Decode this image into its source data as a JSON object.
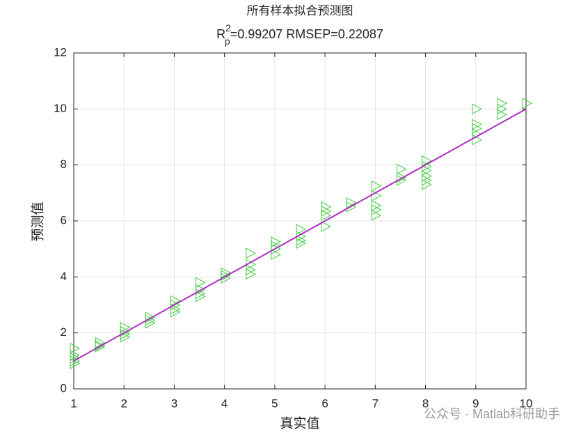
{
  "chart_data": {
    "type": "scatter",
    "title": "所有样本拟合预测图",
    "subtitle": {
      "base": "R",
      "sup": "2",
      "sub": "p",
      "rest": "=0.99207  RMSEP=0.22087"
    },
    "xlabel": "真实值",
    "ylabel": "预测值",
    "xlim": [
      1,
      10
    ],
    "xticks": [
      1,
      2,
      3,
      4,
      5,
      6,
      7,
      8,
      9,
      10
    ],
    "ylim": [
      0,
      12
    ],
    "yticks": [
      0,
      2,
      4,
      6,
      8,
      10,
      12
    ],
    "grid": true,
    "series": [
      {
        "type": "scatter",
        "marker": "triangle-right",
        "color": "#3ccc3c",
        "x": [
          1,
          1,
          1,
          1,
          1,
          1.5,
          1.5,
          1.5,
          2,
          2,
          2,
          2,
          2.5,
          2.5,
          2.5,
          3,
          3,
          3,
          3,
          3.5,
          3.5,
          3.5,
          3.5,
          4,
          4,
          4,
          4.5,
          4.5,
          4.5,
          4.5,
          5,
          5,
          5,
          5,
          5.5,
          5.5,
          5.5,
          5.5,
          6,
          6,
          6,
          6,
          6.5,
          6.5,
          7,
          7,
          7,
          7,
          7,
          7.5,
          7.5,
          7.5,
          8,
          8,
          8,
          8,
          8,
          8,
          9,
          9,
          9,
          9,
          9,
          9.5,
          9.5,
          9.5,
          10
        ],
        "values": [
          1.45,
          1.2,
          1.1,
          1.0,
          0.9,
          1.65,
          1.55,
          1.5,
          2.2,
          2.05,
          1.95,
          1.85,
          2.55,
          2.45,
          2.35,
          3.15,
          3.0,
          2.85,
          2.75,
          3.8,
          3.55,
          3.4,
          3.3,
          4.15,
          4.05,
          3.95,
          4.85,
          4.45,
          4.25,
          4.1,
          5.25,
          5.1,
          5.0,
          4.8,
          5.7,
          5.45,
          5.3,
          5.2,
          6.5,
          6.35,
          6.2,
          5.8,
          6.65,
          6.5,
          7.25,
          6.9,
          6.55,
          6.4,
          6.2,
          7.85,
          7.55,
          7.45,
          8.15,
          7.95,
          7.8,
          7.6,
          7.45,
          7.3,
          10.0,
          9.45,
          9.3,
          9.1,
          8.9,
          10.2,
          10.0,
          9.8,
          10.2
        ]
      },
      {
        "type": "line",
        "color": "#b02cc4",
        "x": [
          1,
          10
        ],
        "values": [
          1,
          10
        ]
      }
    ],
    "watermark": "公众号 · Matlab科研助手"
  }
}
